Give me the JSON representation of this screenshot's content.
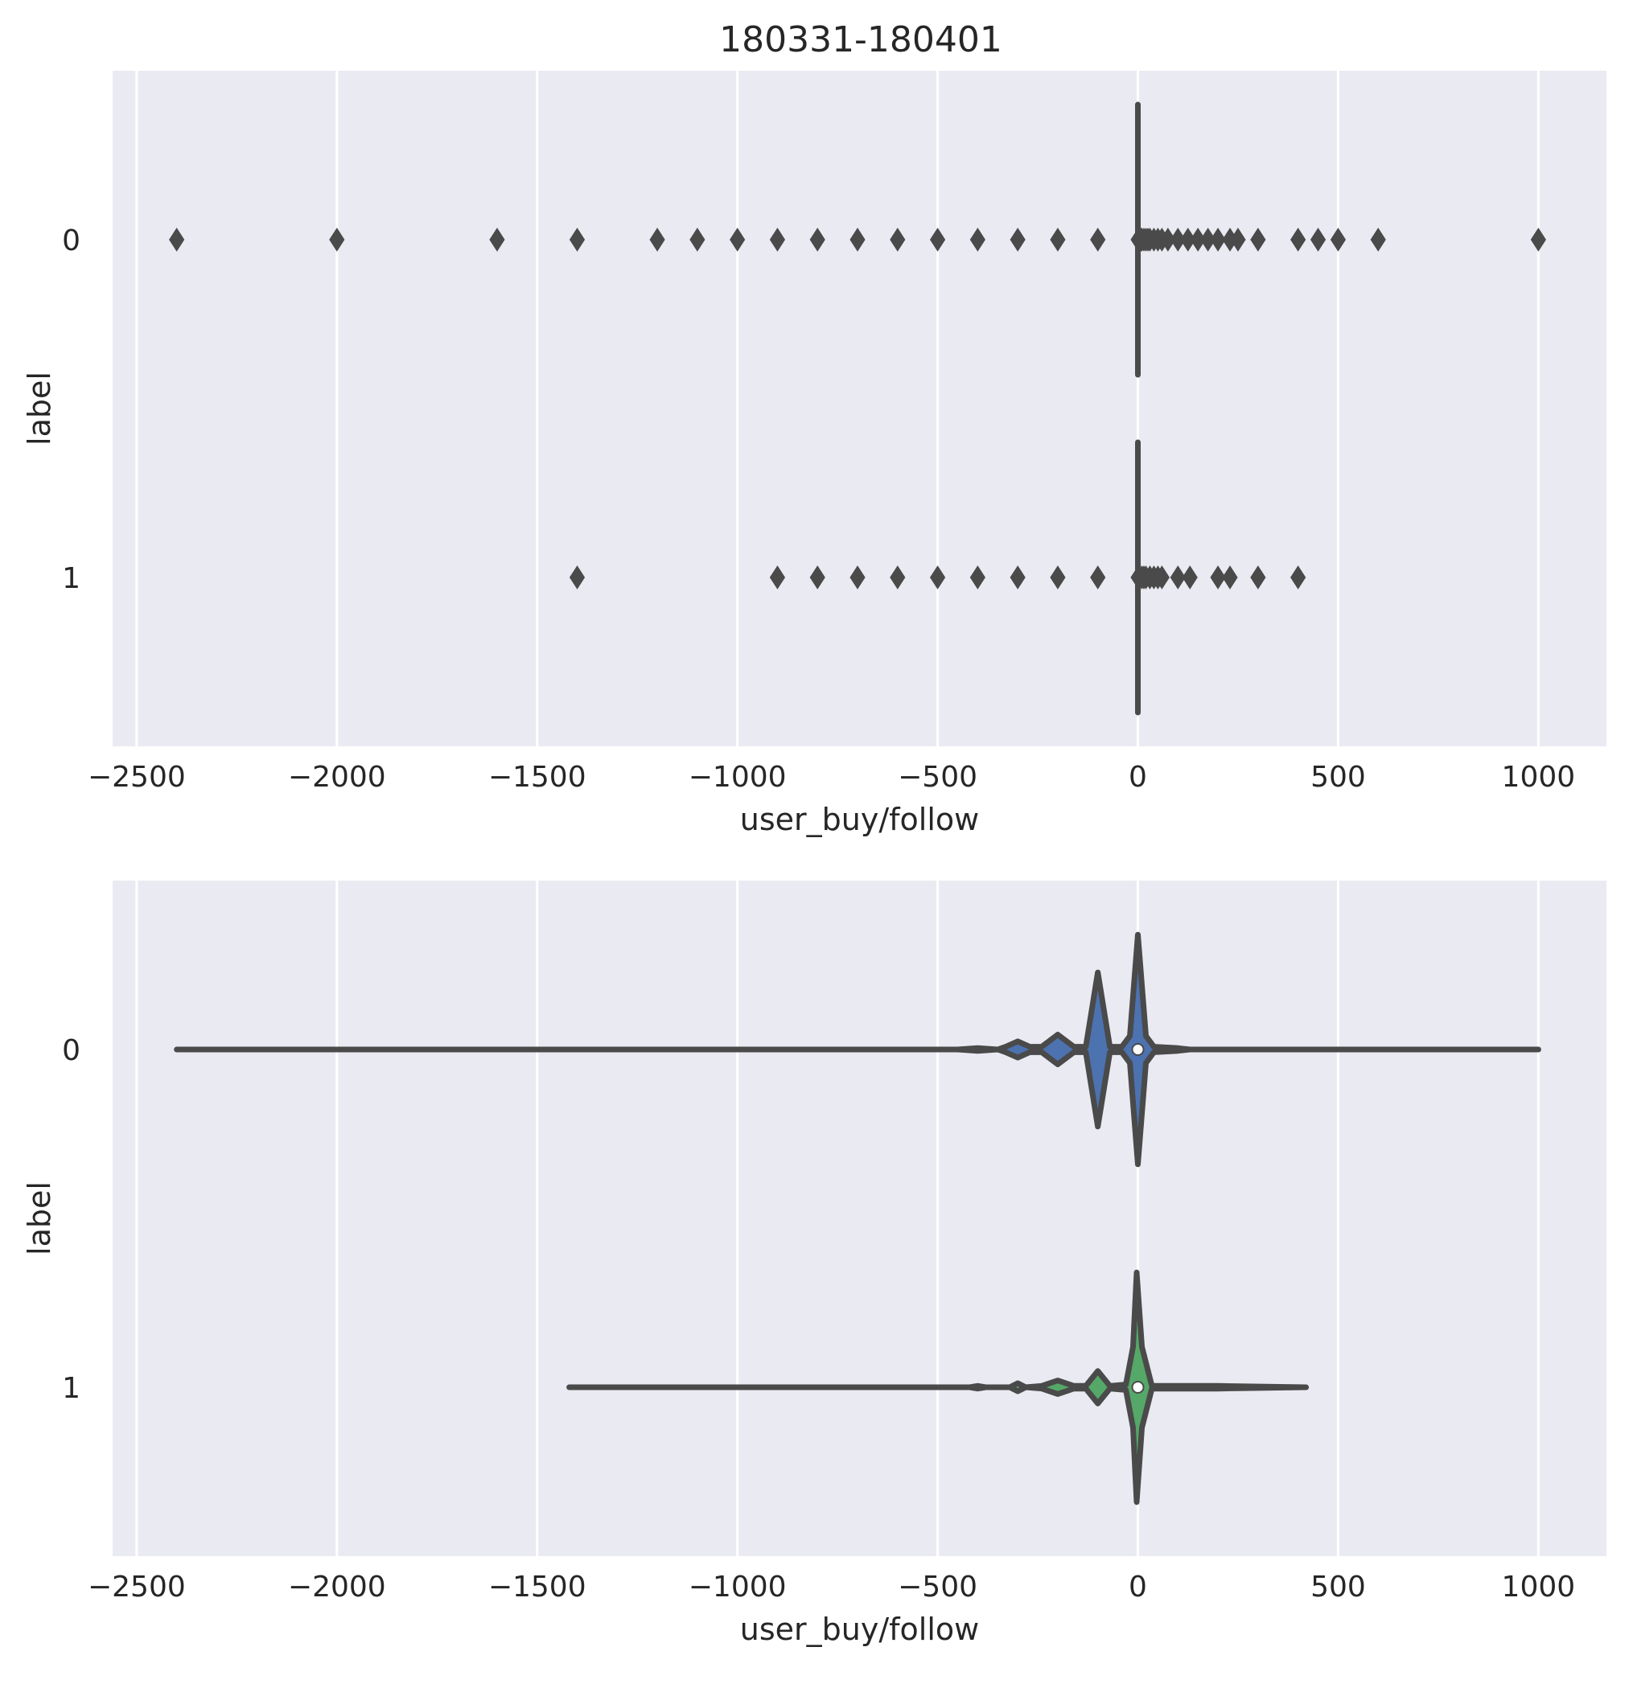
{
  "title": "180331-180401",
  "chart_data": [
    {
      "type": "box",
      "orientation": "horizontal",
      "title": "180331-180401",
      "xlabel": "user_buy/follow",
      "ylabel": "label",
      "xlim": [
        -2560,
        1170
      ],
      "xticks": [
        -2500,
        -2000,
        -1500,
        -1000,
        -500,
        0,
        500,
        1000
      ],
      "xtick_labels": [
        "−2500",
        "−2000",
        "−1500",
        "−1000",
        "−500",
        "0",
        "500",
        "1000"
      ],
      "categories": [
        "0",
        "1"
      ],
      "grid": true,
      "series": [
        {
          "category": "0",
          "color": "#4c72b0",
          "q1": 0,
          "median": 0,
          "q3": 0,
          "whisker_low": 0,
          "whisker_high": 0,
          "outliers": [
            -2400,
            -2000,
            -1600,
            -1400,
            -1200,
            -1100,
            -1000,
            -900,
            -800,
            -700,
            -600,
            -500,
            -400,
            -300,
            -200,
            -100,
            1,
            3,
            5,
            8,
            10,
            15,
            20,
            25,
            30,
            40,
            50,
            60,
            75,
            100,
            125,
            150,
            175,
            200,
            230,
            250,
            300,
            400,
            450,
            500,
            600,
            1000
          ]
        },
        {
          "category": "1",
          "color": "#55a868",
          "q1": 0,
          "median": 0,
          "q3": 0,
          "whisker_low": 0,
          "whisker_high": 0,
          "outliers": [
            -1400,
            -900,
            -800,
            -700,
            -600,
            -500,
            -400,
            -300,
            -200,
            -100,
            1,
            5,
            10,
            15,
            20,
            30,
            40,
            50,
            60,
            100,
            130,
            200,
            230,
            300,
            400
          ]
        }
      ]
    },
    {
      "type": "violin",
      "orientation": "horizontal",
      "xlabel": "user_buy/follow",
      "ylabel": "label",
      "xlim": [
        -2560,
        1170
      ],
      "xticks": [
        -2500,
        -2000,
        -1500,
        -1000,
        -500,
        0,
        500,
        1000
      ],
      "xtick_labels": [
        "−2500",
        "−2000",
        "−1500",
        "−1000",
        "−500",
        "0",
        "500",
        "1000"
      ],
      "categories": [
        "0",
        "1"
      ],
      "grid": true,
      "series": [
        {
          "category": "0",
          "color": "#4c72b0",
          "min": -2400,
          "max": 1000,
          "median": 0,
          "density": [
            [
              -2400,
              0
            ],
            [
              -450,
              0
            ],
            [
              -400,
              0.01
            ],
            [
              -350,
              0
            ],
            [
              -330,
              0.02
            ],
            [
              -300,
              0.06
            ],
            [
              -270,
              0.02
            ],
            [
              -240,
              0.02
            ],
            [
              -200,
              0.11
            ],
            [
              -160,
              0.02
            ],
            [
              -130,
              0.02
            ],
            [
              -100,
              0.57
            ],
            [
              -70,
              0.02
            ],
            [
              -40,
              0.02
            ],
            [
              -20,
              0.1
            ],
            [
              0,
              0.85
            ],
            [
              20,
              0.1
            ],
            [
              40,
              0.02
            ],
            [
              100,
              0.01
            ],
            [
              130,
              0
            ],
            [
              1000,
              0
            ]
          ]
        },
        {
          "category": "1",
          "color": "#55a868",
          "min": -1420,
          "max": 420,
          "median": 0,
          "density": [
            [
              -1420,
              0
            ],
            [
              -420,
              0
            ],
            [
              -400,
              0.01
            ],
            [
              -380,
              0
            ],
            [
              -320,
              0
            ],
            [
              -300,
              0.03
            ],
            [
              -280,
              0
            ],
            [
              -240,
              0.01
            ],
            [
              -200,
              0.05
            ],
            [
              -160,
              0.01
            ],
            [
              -130,
              0.01
            ],
            [
              -100,
              0.12
            ],
            [
              -70,
              0.01
            ],
            [
              -30,
              0.02
            ],
            [
              -12,
              0.3
            ],
            [
              -3,
              0.85
            ],
            [
              10,
              0.3
            ],
            [
              35,
              0.01
            ],
            [
              100,
              0.01
            ],
            [
              200,
              0.01
            ],
            [
              420,
              0
            ]
          ]
        }
      ]
    }
  ]
}
